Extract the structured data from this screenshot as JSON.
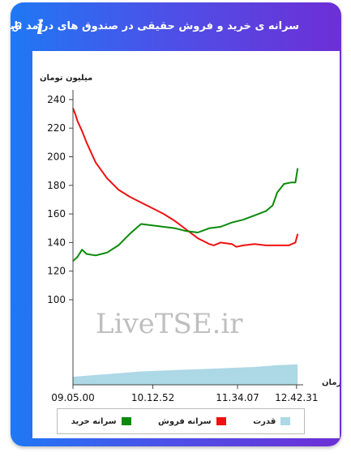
{
  "header": {
    "title": "سرانه ی خرید و فروش حقیقی در صندوق های درآمد ثابت",
    "icons": [
      "link-icon",
      "info-icon"
    ],
    "info_glyph": "i"
  },
  "colors": {
    "frame_start": "#1f78f5",
    "frame_end": "#6d2fd6",
    "buy": "#0a8a0a",
    "sell": "#ee1111",
    "power": "#add8e6"
  },
  "chart_data": {
    "type": "line",
    "ylabel": "میلیون تومان",
    "xlabel": "زمان",
    "watermark": "LiveTSE.ir",
    "y_ticks": [
      100,
      120,
      140,
      160,
      180,
      200,
      220,
      240
    ],
    "ylim": [
      0,
      240
    ],
    "x_ticks": [
      "09.05.00",
      "10.12.52",
      "11.34.07",
      "12.42.31"
    ],
    "x_tick_positions": [
      0,
      0.352,
      0.725,
      0.985
    ],
    "grid": false,
    "legend": "bottom",
    "series": [
      {
        "name": "سرانه خرید",
        "t": [
          0,
          0.02,
          0.04,
          0.06,
          0.1,
          0.15,
          0.2,
          0.25,
          0.3,
          0.35,
          0.4,
          0.45,
          0.5,
          0.55,
          0.6,
          0.65,
          0.7,
          0.75,
          0.8,
          0.85,
          0.88,
          0.9,
          0.93,
          0.96,
          0.98,
          0.99
        ],
        "values": [
          127,
          130,
          135,
          132,
          131,
          133,
          138,
          146,
          153,
          152,
          151,
          150,
          148,
          147,
          150,
          151,
          154,
          156,
          159,
          162,
          166,
          175,
          181,
          182,
          182,
          192
        ]
      },
      {
        "name": "سرانه فروش",
        "t": [
          0,
          0.01,
          0.02,
          0.04,
          0.06,
          0.1,
          0.15,
          0.2,
          0.25,
          0.3,
          0.35,
          0.4,
          0.45,
          0.5,
          0.55,
          0.6,
          0.62,
          0.65,
          0.7,
          0.72,
          0.75,
          0.8,
          0.85,
          0.9,
          0.95,
          0.98,
          0.99
        ],
        "values": [
          234,
          230,
          225,
          218,
          210,
          196,
          185,
          177,
          172,
          168,
          164,
          160,
          155,
          149,
          143,
          139,
          138,
          140,
          139,
          137,
          138,
          139,
          138,
          138,
          138,
          140,
          146
        ]
      },
      {
        "name": "قدرت",
        "t": [
          0,
          0.1,
          0.2,
          0.3,
          0.4,
          0.5,
          0.6,
          0.7,
          0.8,
          0.85,
          0.9,
          0.99
        ],
        "values": [
          9,
          11,
          13,
          15,
          16,
          17,
          18,
          19,
          20,
          21,
          22,
          23
        ]
      }
    ]
  }
}
